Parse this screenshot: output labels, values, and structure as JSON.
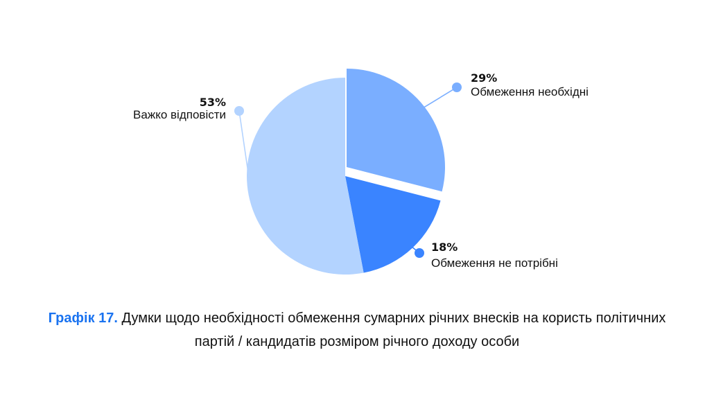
{
  "chart_data": {
    "type": "pie",
    "categories": [
      "Обмеження необхідні",
      "Обмеження не потрібні",
      "Важко відповісти"
    ],
    "values": [
      29,
      18,
      53
    ],
    "value_labels": [
      "29%",
      "18%",
      "53%"
    ],
    "colors": [
      "#7aaeff",
      "#3a84ff",
      "#b3d3ff"
    ],
    "start": "12 o'clock",
    "direction": "clockwise",
    "exploded_slice": "Обмеження необхідні"
  },
  "caption": {
    "lead": "Графік 17.",
    "text": "Думки щодо необхідності обмеження сумарних річних внесків на користь політичних партій / кандидатів розміром річного доходу особи"
  }
}
